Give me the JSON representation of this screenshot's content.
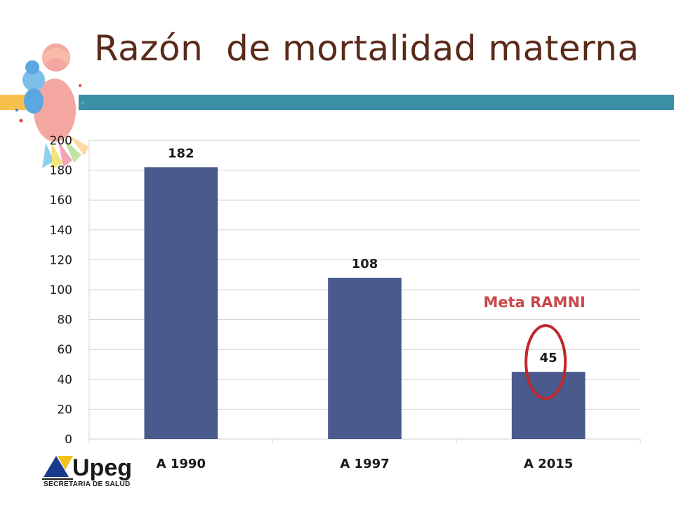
{
  "slide": {
    "title": "Razón  de mortalidad materna",
    "logo_name": "Upeg",
    "logo_subtitle": "SECRETARIA DE SALUD"
  },
  "colors": {
    "title": "#5a2a1a",
    "bar": "#4a5a8c",
    "band_teal": "#3a8fa4",
    "band_yellow": "#f6c04a",
    "highlight": "#c0282a",
    "annotation": "#c9484a",
    "grid": "#d0d0d0"
  },
  "icons": {
    "illustration": "mother-child-icon",
    "logo": "upeg-triangle-logo-icon"
  },
  "chart_data": {
    "type": "bar",
    "categories": [
      "A 1990",
      "A 1997",
      "A 2015"
    ],
    "values": [
      182,
      108,
      45
    ],
    "data_labels": [
      "182",
      "108",
      "45"
    ],
    "ylim": [
      0,
      200
    ],
    "yticks": [
      0,
      20,
      40,
      60,
      80,
      100,
      120,
      140,
      160,
      180,
      200
    ],
    "grid": true,
    "legend": "none",
    "annotation": {
      "text": "Meta RAMNI",
      "category": "A 2015",
      "highlight": "ellipse-around-data-label"
    }
  }
}
